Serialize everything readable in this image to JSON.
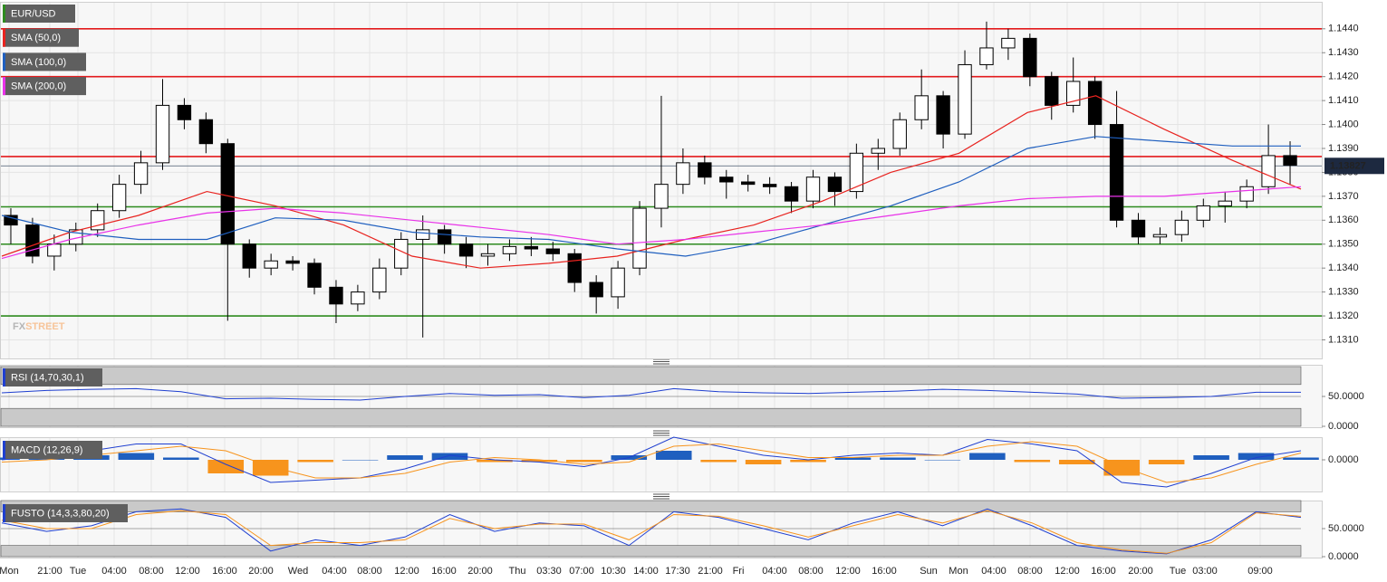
{
  "chart_data": [
    {
      "type": "candlestick",
      "title": "EUR/USD",
      "title_color": "#2e8b1f",
      "logo": [
        "FX",
        "STREET"
      ],
      "x_labels": [
        "Mon",
        "21:00",
        "Tue",
        "04:00",
        "08:00",
        "12:00",
        "16:00",
        "20:00",
        "Wed",
        "04:00",
        "08:00",
        "12:00",
        "16:00",
        "20:00",
        "Thu",
        "03:30",
        "07:00",
        "10:30",
        "14:00",
        "17:30",
        "21:00",
        "Fri",
        "04:00",
        "08:00",
        "12:00",
        "16:00",
        "Sun",
        "Mon",
        "04:00",
        "08:00",
        "12:00",
        "16:00",
        "20:00",
        "Tue",
        "03:00",
        "09:00"
      ],
      "open": [
        1.1362,
        1.1358,
        1.1345,
        1.135,
        1.1356,
        1.1364,
        1.1375,
        1.1384,
        1.1408,
        1.1402,
        1.1392,
        1.135,
        1.134,
        1.1343,
        1.1342,
        1.1332,
        1.1325,
        1.133,
        1.134,
        1.1352,
        1.1356,
        1.135,
        1.1345,
        1.1346,
        1.1349,
        1.1348,
        1.1346,
        1.1334,
        1.1328,
        1.134,
        1.1365,
        1.1375,
        1.1384,
        1.1378,
        1.1376,
        1.1375,
        1.1374,
        1.1368,
        1.1378,
        1.1372,
        1.1388,
        1.139,
        1.1402,
        1.1412,
        1.1396,
        1.1425,
        1.1432,
        1.1436,
        1.142,
        1.1408,
        1.1418,
        1.14,
        1.136,
        1.1353,
        1.1354,
        1.136,
        1.1366,
        1.1368,
        1.1374,
        1.1387
      ],
      "high": [
        1.1365,
        1.1361,
        1.1354,
        1.1359,
        1.1367,
        1.1379,
        1.1389,
        1.1419,
        1.1411,
        1.1405,
        1.1394,
        1.1352,
        1.1346,
        1.1345,
        1.1344,
        1.1335,
        1.1333,
        1.1344,
        1.1355,
        1.1362,
        1.1358,
        1.1353,
        1.135,
        1.1352,
        1.1353,
        1.1351,
        1.1348,
        1.1337,
        1.1343,
        1.1368,
        1.1412,
        1.139,
        1.1387,
        1.1381,
        1.1379,
        1.1378,
        1.1376,
        1.1381,
        1.138,
        1.1392,
        1.1394,
        1.1405,
        1.1423,
        1.1414,
        1.1431,
        1.1443,
        1.144,
        1.1438,
        1.1422,
        1.1428,
        1.142,
        1.1414,
        1.1363,
        1.1357,
        1.1364,
        1.1369,
        1.1372,
        1.1377,
        1.14,
        1.1393
      ],
      "low": [
        1.135,
        1.1342,
        1.1339,
        1.1347,
        1.1353,
        1.1361,
        1.1371,
        1.1381,
        1.1398,
        1.1388,
        1.1318,
        1.1336,
        1.1337,
        1.1339,
        1.1329,
        1.1317,
        1.1322,
        1.1327,
        1.1337,
        1.1311,
        1.1346,
        1.134,
        1.1341,
        1.1343,
        1.1345,
        1.1343,
        1.133,
        1.1321,
        1.1323,
        1.1337,
        1.1357,
        1.1371,
        1.1375,
        1.1369,
        1.1372,
        1.1371,
        1.1363,
        1.1365,
        1.1366,
        1.1369,
        1.1381,
        1.1387,
        1.1398,
        1.139,
        1.1394,
        1.1423,
        1.1427,
        1.1416,
        1.1402,
        1.1405,
        1.1394,
        1.1357,
        1.135,
        1.135,
        1.1351,
        1.1357,
        1.1359,
        1.1365,
        1.1371,
        1.1375
      ],
      "close": [
        1.1358,
        1.1345,
        1.135,
        1.1356,
        1.1364,
        1.1375,
        1.1384,
        1.1408,
        1.1402,
        1.1392,
        1.135,
        1.134,
        1.1343,
        1.1342,
        1.1332,
        1.1325,
        1.133,
        1.134,
        1.1352,
        1.1356,
        1.135,
        1.1345,
        1.1346,
        1.1349,
        1.1348,
        1.1346,
        1.1334,
        1.1328,
        1.134,
        1.1365,
        1.1375,
        1.1384,
        1.1378,
        1.1376,
        1.1375,
        1.1374,
        1.1368,
        1.1378,
        1.1372,
        1.1388,
        1.139,
        1.1402,
        1.1412,
        1.1396,
        1.1425,
        1.1432,
        1.1436,
        1.142,
        1.1408,
        1.1418,
        1.14,
        1.136,
        1.1353,
        1.1354,
        1.136,
        1.1366,
        1.1368,
        1.1374,
        1.1387,
        1.1383
      ],
      "series": [
        {
          "name": "SMA (50,0)",
          "color": "#e8231f",
          "values": [
            1.1345,
            1.1355,
            1.1362,
            1.1372,
            1.1366,
            1.1358,
            1.1345,
            1.134,
            1.1342,
            1.1345,
            1.1352,
            1.1358,
            1.1368,
            1.138,
            1.1388,
            1.1405,
            1.1412,
            1.1398,
            1.1385,
            1.1373
          ]
        },
        {
          "name": "SMA (100,0)",
          "color": "#1f5fbf",
          "values": [
            1.1362,
            1.1355,
            1.1352,
            1.1352,
            1.1361,
            1.136,
            1.1355,
            1.1353,
            1.1352,
            1.1348,
            1.1345,
            1.135,
            1.1358,
            1.1366,
            1.1376,
            1.139,
            1.1395,
            1.1393,
            1.1391,
            1.1391
          ]
        },
        {
          "name": "SMA (200,0)",
          "color": "#e832e8",
          "values": [
            1.1344,
            1.1352,
            1.1358,
            1.1363,
            1.1365,
            1.1363,
            1.136,
            1.1357,
            1.1354,
            1.135,
            1.1352,
            1.1355,
            1.1358,
            1.1362,
            1.1366,
            1.1369,
            1.137,
            1.137,
            1.1372,
            1.1374
          ]
        }
      ],
      "levels": [
        {
          "value": 1.144,
          "color": "#e31a1c"
        },
        {
          "value": 1.142,
          "color": "#e31a1c"
        },
        {
          "value": 1.13866,
          "color": "#e31a1c"
        },
        {
          "value": 1.13656,
          "color": "#2e8b1f"
        },
        {
          "value": 1.135,
          "color": "#2e8b1f"
        },
        {
          "value": 1.132,
          "color": "#2e8b1f"
        }
      ],
      "last": {
        "value": 1.13827,
        "label": "1.13827"
      },
      "ylim": [
        1.1303,
        1.1449
      ],
      "yticks": [
        {
          "value": 1.131,
          "label": "1.1310"
        },
        {
          "value": 1.132,
          "label": "1.1320"
        },
        {
          "value": 1.133,
          "label": "1.1330"
        },
        {
          "value": 1.134,
          "label": "1.1340"
        },
        {
          "value": 1.135,
          "label": "1.1350"
        },
        {
          "value": 1.136,
          "label": "1.1360"
        },
        {
          "value": 1.137,
          "label": "1.1370"
        },
        {
          "value": 1.138,
          "label": "1.1380"
        },
        {
          "value": 1.139,
          "label": "1.1390"
        },
        {
          "value": 1.14,
          "label": "1.1400"
        },
        {
          "value": 1.141,
          "label": "1.1410"
        },
        {
          "value": 1.142,
          "label": "1.1420"
        },
        {
          "value": 1.143,
          "label": "1.1430"
        },
        {
          "value": 1.144,
          "label": "1.1440"
        }
      ],
      "grid": true
    },
    {
      "type": "line",
      "title": "RSI (14,70,30,1)",
      "bands": [
        [
          70,
          100
        ],
        [
          0,
          30
        ]
      ],
      "series": [
        {
          "color": "#1f3fd0",
          "values": [
            56,
            60,
            62,
            63,
            58,
            46,
            47,
            45,
            44,
            50,
            55,
            52,
            53,
            48,
            52,
            63,
            58,
            56,
            55,
            57,
            59,
            62,
            60,
            57,
            54,
            47,
            48,
            50,
            57,
            57
          ]
        }
      ],
      "ylim": [
        0,
        100
      ],
      "yticks": [
        {
          "value": 50,
          "label": "50.0000"
        },
        {
          "value": 0,
          "label": "0.0000"
        }
      ]
    },
    {
      "type": "bar",
      "title": "MACD (12,26,9)",
      "colors": [
        "#1f5fbf",
        "#f7941d"
      ],
      "values": [
        0.0001,
        0.0002,
        0.0002,
        0.0003,
        0.0001,
        -0.0006,
        -0.0007,
        -0.0001,
        0.0,
        0.0002,
        0.0003,
        -0.0001,
        -0.0001,
        -0.0001,
        0.0002,
        0.0004,
        -0.0001,
        -0.0002,
        -0.0001,
        0.0001,
        0.0001,
        0.0,
        0.0003,
        -0.0001,
        -0.0002,
        -0.0007,
        -0.0002,
        0.0002,
        0.0003,
        0.0001
      ],
      "series": [
        {
          "color": "#1f3fd0",
          "values": [
            0.0,
            0.0002,
            0.0004,
            0.0007,
            0.0007,
            -0.0002,
            -0.001,
            -0.0009,
            -0.0008,
            -0.0004,
            0.0002,
            0.0,
            -0.0001,
            -0.0003,
            0.0001,
            0.001,
            0.0006,
            0.0002,
            0.0,
            0.0002,
            0.0003,
            0.0002,
            0.0009,
            0.0007,
            0.0004,
            -0.001,
            -0.0012,
            -0.0006,
            0.0001,
            0.0004
          ]
        },
        {
          "color": "#f7941d",
          "values": [
            -0.0001,
            0.0,
            0.0002,
            0.0004,
            0.0006,
            0.0004,
            -0.0003,
            -0.0008,
            -0.0008,
            -0.0006,
            -0.0001,
            0.0001,
            0.0,
            -0.0002,
            -0.0001,
            0.0006,
            0.0007,
            0.0004,
            0.0001,
            0.0001,
            0.0002,
            0.0002,
            0.0006,
            0.0008,
            0.0006,
            -0.0003,
            -0.001,
            -0.0008,
            -0.0002,
            0.0003
          ]
        }
      ],
      "ylim": [
        -0.0014,
        0.001
      ],
      "yticks": [
        {
          "value": 0,
          "label": "0.0000"
        }
      ]
    },
    {
      "type": "line",
      "title": "FUSTO (14,3,3,80,20)",
      "bands": [
        [
          80,
          100
        ],
        [
          0,
          20
        ]
      ],
      "series": [
        {
          "color": "#1f3fd0",
          "values": [
            60,
            45,
            55,
            80,
            85,
            70,
            10,
            30,
            20,
            35,
            75,
            45,
            60,
            55,
            20,
            80,
            70,
            50,
            30,
            60,
            80,
            55,
            85,
            55,
            20,
            10,
            5,
            30,
            80,
            70
          ]
        },
        {
          "color": "#f7941d",
          "values": [
            65,
            50,
            50,
            75,
            82,
            75,
            20,
            25,
            25,
            30,
            68,
            50,
            58,
            58,
            30,
            75,
            72,
            55,
            35,
            55,
            75,
            60,
            82,
            60,
            25,
            12,
            6,
            25,
            78,
            72
          ]
        }
      ],
      "ylim": [
        0,
        100
      ],
      "yticks": [
        {
          "value": 50,
          "label": "50.0000"
        },
        {
          "value": 0,
          "label": "0.0000"
        }
      ]
    }
  ]
}
